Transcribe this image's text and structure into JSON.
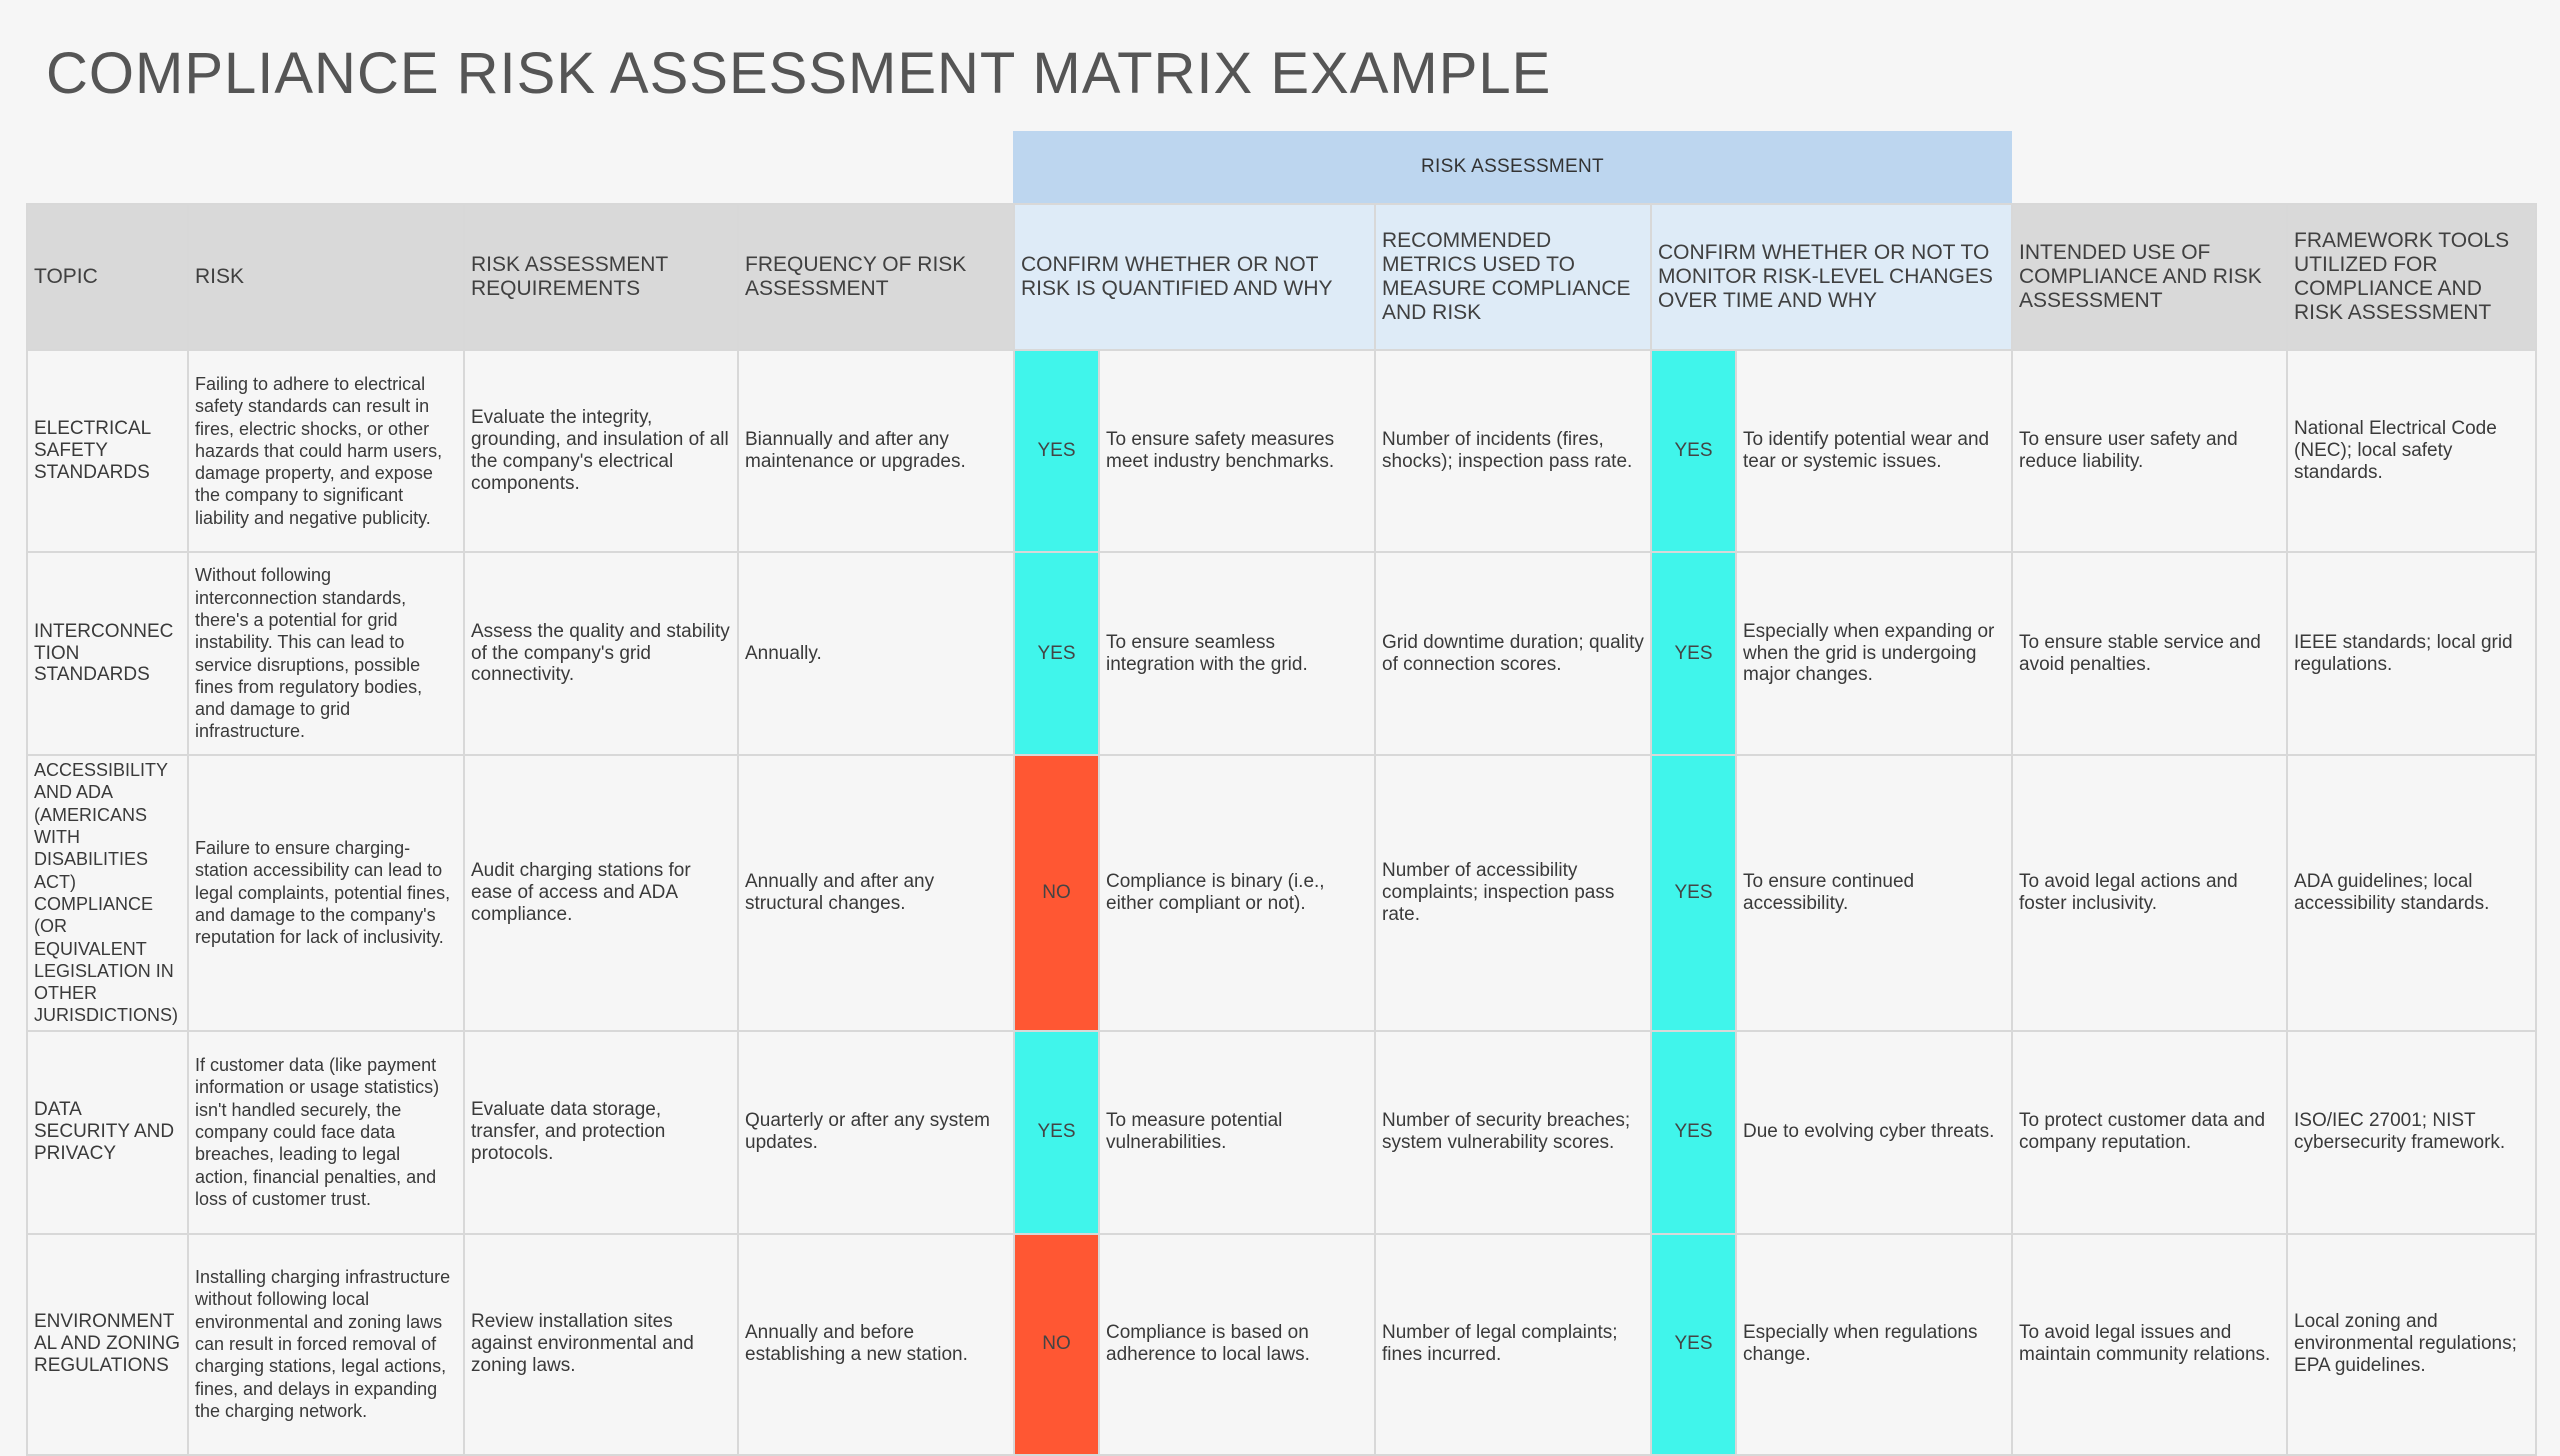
{
  "title": "COMPLIANCE RISK ASSESSMENT MATRIX EXAMPLE",
  "group_header": "RISK ASSESSMENT",
  "colors": {
    "yes": "#40f5eb",
    "no": "#ff5733",
    "header_gray": "#d9d9d9",
    "header_blue": "#deebf7",
    "band_blue": "#bdd6ef"
  },
  "headers": {
    "topic": "TOPIC",
    "risk": "RISK",
    "requirements": "RISK ASSESSMENT REQUIREMENTS",
    "frequency": "FREQUENCY OF RISK ASSESSMENT",
    "quantified": "CONFIRM WHETHER OR NOT RISK IS QUANTIFIED AND WHY",
    "metrics": "RECOMMENDED METRICS USED TO MEASURE COMPLIANCE AND RISK",
    "monitor": "CONFIRM WHETHER OR NOT TO MONITOR RISK-LEVEL CHANGES OVER TIME AND WHY",
    "intended_use": "INTENDED USE OF COMPLIANCE AND RISK ASSESSMENT",
    "framework": "FRAMEWORK TOOLS UTILIZED FOR COMPLIANCE AND RISK ASSESSMENT"
  },
  "rows": [
    {
      "topic": "ELECTRICAL SAFETY STANDARDS",
      "risk": "Failing to adhere to electrical safety standards can result in fires, electric shocks, or other hazards that could harm users, damage property, and expose the company to significant liability and negative publicity.",
      "requirements": "Evaluate the integrity, grounding, and insulation of all the company's electrical components.",
      "frequency": "Biannually and after any maintenance or upgrades.",
      "quantified": "YES",
      "quantified_why": "To ensure safety measures meet industry benchmarks.",
      "metrics": "Number of incidents (fires, shocks); inspection pass rate.",
      "monitor": "YES",
      "monitor_why": "To identify potential wear and tear or systemic issues.",
      "intended_use": "To ensure user safety and reduce liability.",
      "framework": "National Electrical Code (NEC); local safety standards."
    },
    {
      "topic": "INTERCONNECTION STANDARDS",
      "risk": "Without following interconnection standards, there's a potential for grid instability. This can lead to service disruptions, possible fines from regulatory bodies, and damage to grid infrastructure.",
      "requirements": "Assess the quality and stability of the company's grid connectivity.",
      "frequency": "Annually.",
      "quantified": "YES",
      "quantified_why": "To ensure seamless integration with the grid.",
      "metrics": "Grid downtime duration; quality of connection scores.",
      "monitor": "YES",
      "monitor_why": "Especially when expanding or when the grid is undergoing major changes.",
      "intended_use": "To ensure stable service and avoid penalties.",
      "framework": "IEEE standards; local grid regulations."
    },
    {
      "topic": "ACCESSIBILITY AND ADA (AMERICANS WITH DISABILITIES ACT) COMPLIANCE (OR EQUIVALENT LEGISLATION IN OTHER JURISDICTIONS)",
      "risk": "Failure to ensure charging-station accessibility can lead to legal complaints, potential fines, and damage to the company's reputation for lack of inclusivity.",
      "requirements": "Audit charging stations for ease of access and ADA compliance.",
      "frequency": "Annually and after any structural changes.",
      "quantified": "NO",
      "quantified_why": "Compliance is binary (i.e., either compliant or not).",
      "metrics": "Number of accessibility complaints; inspection pass rate.",
      "monitor": "YES",
      "monitor_why": "To ensure continued accessibility.",
      "intended_use": "To avoid legal actions and foster inclusivity.",
      "framework": "ADA guidelines; local accessibility standards."
    },
    {
      "topic": "DATA SECURITY AND PRIVACY",
      "risk": "If customer data (like payment information or usage statistics) isn't handled securely, the company could face data breaches, leading to legal action, financial penalties, and loss of customer trust.",
      "requirements": "Evaluate data storage, transfer, and protection protocols.",
      "frequency": "Quarterly or after any system updates.",
      "quantified": "YES",
      "quantified_why": "To measure potential vulnerabilities.",
      "metrics": "Number of security breaches; system vulnerability scores.",
      "monitor": "YES",
      "monitor_why": "Due to evolving cyber threats.",
      "intended_use": "To protect customer data and company reputation.",
      "framework": "ISO/IEC 27001; NIST cybersecurity framework."
    },
    {
      "topic": "ENVIRONMENTAL AND ZONING REGULATIONS",
      "risk": "Installing charging infrastructure without following local environmental and zoning laws can result in forced removal of charging stations, legal actions, fines, and delays in expanding the charging network.",
      "requirements": "Review installation sites against environmental and zoning laws.",
      "frequency": "Annually and before establishing a new station.",
      "quantified": "NO",
      "quantified_why": "Compliance is based on adherence to local laws.",
      "metrics": "Number of legal complaints; fines incurred.",
      "monitor": "YES",
      "monitor_why": "Especially when regulations change.",
      "intended_use": "To avoid legal issues and maintain community relations.",
      "framework": "Local zoning and environmental regulations; EPA guidelines."
    }
  ]
}
